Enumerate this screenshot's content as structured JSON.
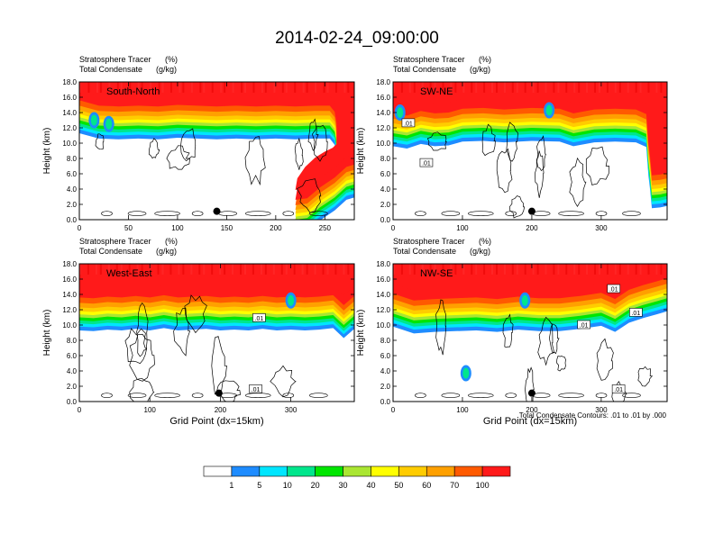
{
  "figure": {
    "title": "2014-02-24_09:00:00",
    "footnote": "Total Condensate Contours: .01 to .01 by .000"
  },
  "colors": {
    "levels": [
      "#ffffff",
      "#1e8cff",
      "#00e6ff",
      "#00e68c",
      "#00e600",
      "#aae632",
      "#ffff00",
      "#ffcc00",
      "#ffa000",
      "#ff5a00",
      "#ff1a1a"
    ],
    "contour": "#000000"
  },
  "colorbar": {
    "labels": [
      "1",
      "5",
      "10",
      "20",
      "30",
      "40",
      "50",
      "60",
      "70",
      "100"
    ]
  },
  "chart_data": [
    {
      "type": "heatmap",
      "label": "South-North",
      "subtitle_left_1": "Stratosphere Tracer",
      "subtitle_unit_1": "(%)",
      "subtitle_left_2": "Total Condensate",
      "subtitle_unit_2": "(g/kg)",
      "ylabel": "Height (km)",
      "xlabel": "",
      "xlim": [
        0,
        280
      ],
      "ylim": [
        0,
        18
      ],
      "xticks": [
        0,
        50,
        100,
        150,
        200,
        250
      ],
      "yticks": [
        "0.0",
        "2.0",
        "4.0",
        "6.0",
        "8.0",
        "10.0",
        "12.0",
        "14.0",
        "16.0",
        "18.0"
      ],
      "marker": [
        140,
        1.1
      ],
      "contour_labels": [],
      "tracer_top": [
        [
          0,
          16.0
        ],
        [
          20,
          15.3
        ],
        [
          40,
          15.2
        ],
        [
          60,
          15.3
        ],
        [
          80,
          15.2
        ],
        [
          100,
          15.4
        ],
        [
          120,
          15.3
        ],
        [
          140,
          15.2
        ],
        [
          160,
          15.3
        ],
        [
          180,
          15.2
        ],
        [
          200,
          15.3
        ],
        [
          220,
          15.2
        ],
        [
          240,
          15.3
        ],
        [
          255,
          15.3
        ],
        [
          260,
          14.5
        ],
        [
          262,
          13.0
        ],
        [
          262,
          9.0
        ],
        [
          258,
          8.5
        ],
        [
          250,
          8.0
        ],
        [
          240,
          7.2
        ],
        [
          230,
          6.0
        ],
        [
          222,
          4.5
        ],
        [
          220,
          3.0
        ],
        [
          232,
          3.2
        ],
        [
          245,
          4.6
        ],
        [
          260,
          5.9
        ],
        [
          272,
          7.3
        ],
        [
          280,
          7.6
        ]
      ],
      "blue_blobs": [
        [
          15,
          13.0
        ],
        [
          30,
          12.5
        ]
      ]
    },
    {
      "type": "heatmap",
      "label": "SW-NE",
      "subtitle_left_1": "Stratosphere Tracer",
      "subtitle_unit_1": "(%)",
      "subtitle_left_2": "Total Condensate",
      "subtitle_unit_2": "(g/kg)",
      "ylabel": "Height (km)",
      "xlabel": "",
      "xlim": [
        0,
        395
      ],
      "ylim": [
        0,
        18
      ],
      "xticks": [
        0,
        100,
        200,
        300
      ],
      "yticks": [
        "0.0",
        "2.0",
        "4.0",
        "6.0",
        "8.0",
        "10.0",
        "12.0",
        "14.0",
        "16.0",
        "18.0"
      ],
      "marker": [
        200,
        1.1
      ],
      "contour_labels": [
        {
          "text": ".01",
          "x": 22,
          "y": 12.6
        },
        {
          "text": ".01",
          "x": 48,
          "y": 7.4
        }
      ],
      "tracer_top": [
        [
          0,
          14.3
        ],
        [
          20,
          14.0
        ],
        [
          40,
          14.6
        ],
        [
          60,
          14.3
        ],
        [
          80,
          14.4
        ],
        [
          100,
          14.9
        ],
        [
          130,
          15.0
        ],
        [
          160,
          14.8
        ],
        [
          200,
          15.0
        ],
        [
          240,
          14.9
        ],
        [
          260,
          14.3
        ],
        [
          290,
          14.8
        ],
        [
          320,
          14.9
        ],
        [
          350,
          14.8
        ],
        [
          365,
          14.2
        ],
        [
          368,
          10.5
        ],
        [
          370,
          9.0
        ],
        [
          373,
          6.2
        ],
        [
          385,
          6.3
        ],
        [
          395,
          6.5
        ]
      ],
      "blue_blobs": [
        [
          10,
          14.0
        ],
        [
          225,
          14.3
        ]
      ]
    },
    {
      "type": "heatmap",
      "label": "West-East",
      "subtitle_left_1": "Stratosphere Tracer",
      "subtitle_unit_1": "(%)",
      "subtitle_left_2": "Total Condensate",
      "subtitle_unit_2": "(g/kg)",
      "ylabel": "Height (km)",
      "xlabel": "Grid Point (dx=15km)",
      "xlim": [
        0,
        390
      ],
      "ylim": [
        0,
        18
      ],
      "xticks": [
        0,
        100,
        200,
        300
      ],
      "yticks": [
        "0.0",
        "2.0",
        "4.0",
        "6.0",
        "8.0",
        "10.0",
        "12.0",
        "14.0",
        "16.0",
        "18.0"
      ],
      "marker": [
        198,
        1.1
      ],
      "contour_labels": [
        {
          "text": ".01",
          "x": 255,
          "y": 10.9
        },
        {
          "text": ".01",
          "x": 250,
          "y": 1.6
        }
      ],
      "tracer_top": [
        [
          0,
          14.0
        ],
        [
          20,
          13.9
        ],
        [
          40,
          14.1
        ],
        [
          60,
          14.0
        ],
        [
          80,
          14.2
        ],
        [
          100,
          14.0
        ],
        [
          120,
          14.3
        ],
        [
          140,
          14.0
        ],
        [
          160,
          14.1
        ],
        [
          180,
          14.2
        ],
        [
          200,
          14.0
        ],
        [
          220,
          14.1
        ],
        [
          240,
          14.0
        ],
        [
          260,
          14.2
        ],
        [
          280,
          14.0
        ],
        [
          300,
          14.1
        ],
        [
          320,
          14.0
        ],
        [
          340,
          14.1
        ],
        [
          360,
          14.3
        ],
        [
          375,
          13.0
        ],
        [
          390,
          14.2
        ]
      ],
      "blue_blobs": [
        [
          300,
          13.2
        ]
      ]
    },
    {
      "type": "heatmap",
      "label": "NW-SE",
      "subtitle_left_1": "Stratosphere Tracer",
      "subtitle_unit_1": "(%)",
      "subtitle_left_2": "Total Condensate",
      "subtitle_unit_2": "(g/kg)",
      "ylabel": "Height (km)",
      "xlabel": "Grid Point (dx=15km)",
      "xlim": [
        0,
        395
      ],
      "ylim": [
        0,
        18
      ],
      "xticks": [
        0,
        100,
        200,
        300
      ],
      "yticks": [
        "0.0",
        "2.0",
        "4.0",
        "6.0",
        "8.0",
        "10.0",
        "12.0",
        "14.0",
        "16.0",
        "18.0"
      ],
      "marker": [
        200,
        1.1
      ],
      "contour_labels": [
        {
          "text": ".01",
          "x": 318,
          "y": 14.7
        },
        {
          "text": ".01",
          "x": 350,
          "y": 11.6
        },
        {
          "text": ".01",
          "x": 275,
          "y": 10.0
        },
        {
          "text": ".01",
          "x": 325,
          "y": 1.6
        }
      ],
      "tracer_top": [
        [
          0,
          14.5
        ],
        [
          30,
          13.6
        ],
        [
          60,
          13.8
        ],
        [
          90,
          13.9
        ],
        [
          120,
          14.0
        ],
        [
          150,
          13.8
        ],
        [
          180,
          14.1
        ],
        [
          210,
          13.9
        ],
        [
          240,
          13.9
        ],
        [
          270,
          14.2
        ],
        [
          300,
          14.6
        ],
        [
          320,
          13.8
        ],
        [
          340,
          15.0
        ],
        [
          360,
          15.6
        ],
        [
          380,
          16.1
        ],
        [
          395,
          16.5
        ]
      ],
      "blue_blobs": [
        [
          190,
          13.2
        ],
        [
          105,
          3.7
        ]
      ]
    }
  ]
}
